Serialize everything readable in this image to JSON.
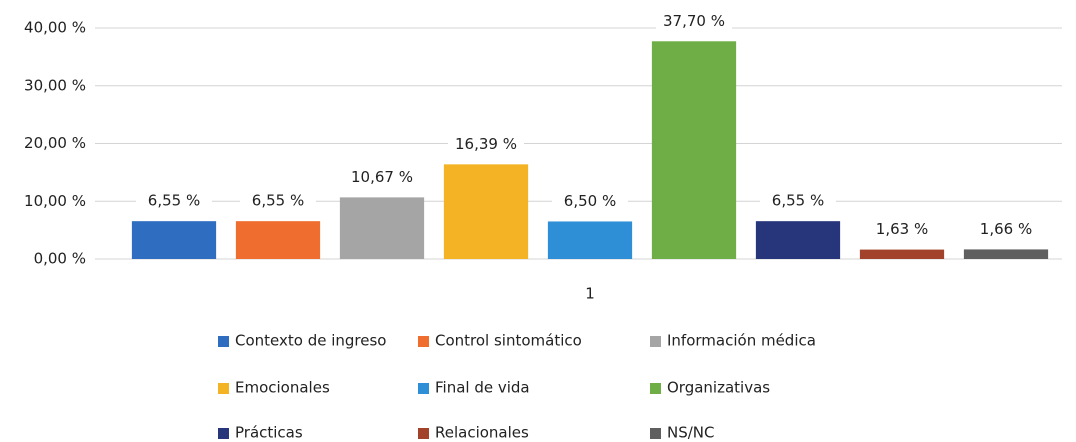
{
  "chart_data": {
    "type": "bar",
    "categories": [
      "1"
    ],
    "series": [
      {
        "name": "Contexto de ingreso",
        "color": "#2e6dbf",
        "values": [
          6.55
        ],
        "value_labels": [
          "6,55 %"
        ]
      },
      {
        "name": "Control sintomático",
        "color": "#ee6d2f",
        "values": [
          6.55
        ],
        "value_labels": [
          "6,55 %"
        ]
      },
      {
        "name": "Información médica",
        "color": "#a5a5a5",
        "values": [
          10.67
        ],
        "value_labels": [
          "10,67 %"
        ]
      },
      {
        "name": "Emocionales",
        "color": "#f4b324",
        "values": [
          16.39
        ],
        "value_labels": [
          "16,39 %"
        ]
      },
      {
        "name": "Final de vida",
        "color": "#2f8fd6",
        "values": [
          6.5
        ],
        "value_labels": [
          "6,50 %"
        ]
      },
      {
        "name": "Organizativas",
        "color": "#6fad46",
        "values": [
          37.7
        ],
        "value_labels": [
          "37,70 %"
        ]
      },
      {
        "name": "Prácticas",
        "color": "#27367a",
        "values": [
          6.55
        ],
        "value_labels": [
          "6,55 %"
        ]
      },
      {
        "name": "Relacionales",
        "color": "#a3422a",
        "values": [
          1.63
        ],
        "value_labels": [
          "1,63 %"
        ]
      },
      {
        "name": "NS/NC",
        "color": "#5f5f5f",
        "values": [
          1.66
        ],
        "value_labels": [
          "1,66 %"
        ]
      }
    ],
    "ylim": [
      0,
      40
    ],
    "yticks": [
      {
        "value": 0,
        "label": "0,00 %"
      },
      {
        "value": 10,
        "label": "10,00 %"
      },
      {
        "value": 20,
        "label": "20,00 %"
      },
      {
        "value": 30,
        "label": "30,00 %"
      },
      {
        "value": 40,
        "label": "40,00 %"
      }
    ],
    "grid": true,
    "legend": "bottom"
  }
}
